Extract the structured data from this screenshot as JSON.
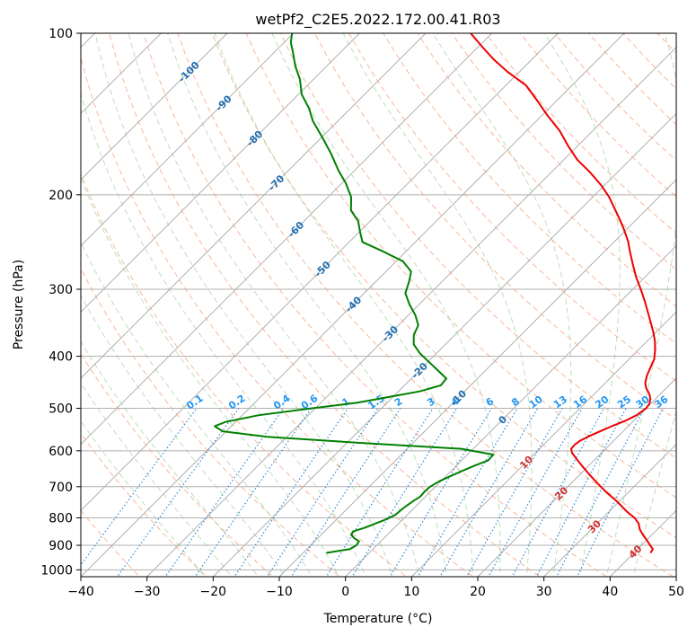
{
  "chart_data": {
    "type": "skew-t log-p",
    "title": "wetPf2_C2E5.2022.172.00.41.R03",
    "xlabel": "Temperature (°C)",
    "ylabel": "Pressure (hPa)",
    "xlim": [
      -40,
      50
    ],
    "ylim": [
      1030,
      100
    ],
    "log_y": true,
    "grid": true,
    "x_ticks": [
      -40,
      -30,
      -20,
      -10,
      0,
      10,
      20,
      30,
      40,
      50
    ],
    "x_tick_labels": [
      "−40",
      "−30",
      "−20",
      "−10",
      "0",
      "10",
      "20",
      "30",
      "40",
      "50"
    ],
    "y_ticks": [
      1000,
      900,
      800,
      700,
      600,
      500,
      400,
      300,
      200,
      100
    ],
    "y_tick_labels": [
      "1000",
      "900",
      "800",
      "700",
      "600",
      "500",
      "400",
      "300",
      "200",
      "100"
    ],
    "isotherm_labels": [
      {
        "text": "-100",
        "value": -100,
        "p": 118
      },
      {
        "text": "-90",
        "value": -90,
        "p": 135
      },
      {
        "text": "-80",
        "value": -80,
        "p": 157
      },
      {
        "text": "-70",
        "value": -70,
        "p": 190
      },
      {
        "text": "-60",
        "value": -60,
        "p": 232
      },
      {
        "text": "-50",
        "value": -50,
        "p": 275
      },
      {
        "text": "-40",
        "value": -40,
        "p": 320
      },
      {
        "text": "-30",
        "value": -30,
        "p": 363
      },
      {
        "text": "-20",
        "value": -20,
        "p": 425
      },
      {
        "text": "-10",
        "value": -10,
        "p": 478
      },
      {
        "text": "0",
        "value": 0,
        "p": 525
      },
      {
        "text": "10",
        "value": 10,
        "p": 630
      },
      {
        "text": "20",
        "value": 20,
        "p": 720
      },
      {
        "text": "30",
        "value": 30,
        "p": 830
      },
      {
        "text": "40",
        "value": 40,
        "p": 925
      }
    ],
    "mixing_ratio_labels": [
      "0.1",
      "0.2",
      "0.4",
      "0.6",
      "1",
      "1.5",
      "2",
      "3",
      "4",
      "6",
      "8",
      "10",
      "13",
      "16",
      "20",
      "25",
      "30",
      "36"
    ],
    "series": [
      {
        "name": "temperature",
        "color": "#ee0000",
        "points": [
          [
            42.5,
            930
          ],
          [
            42.3,
            915
          ],
          [
            41.3,
            900
          ],
          [
            40.0,
            880
          ],
          [
            38.6,
            860
          ],
          [
            37.3,
            840
          ],
          [
            36.3,
            820
          ],
          [
            34.8,
            800
          ],
          [
            32.8,
            780
          ],
          [
            31.0,
            760
          ],
          [
            29.1,
            740
          ],
          [
            27.0,
            720
          ],
          [
            25.0,
            700
          ],
          [
            23.0,
            680
          ],
          [
            21.0,
            660
          ],
          [
            19.0,
            640
          ],
          [
            17.0,
            620
          ],
          [
            15.5,
            605
          ],
          [
            14.8,
            595
          ],
          [
            14.7,
            585
          ],
          [
            14.9,
            575
          ],
          [
            15.5,
            565
          ],
          [
            16.5,
            552
          ],
          [
            17.5,
            540
          ],
          [
            18.7,
            528
          ],
          [
            19.6,
            515
          ],
          [
            20.0,
            500
          ],
          [
            19.8,
            490
          ],
          [
            19.2,
            480
          ],
          [
            18.3,
            470
          ],
          [
            16.9,
            458
          ],
          [
            16.0,
            448
          ],
          [
            15.2,
            435
          ],
          [
            14.5,
            420
          ],
          [
            13.8,
            405
          ],
          [
            12.6,
            390
          ],
          [
            11.2,
            375
          ],
          [
            9.5,
            360
          ],
          [
            7.6,
            345
          ],
          [
            5.6,
            330
          ],
          [
            3.5,
            315
          ],
          [
            1.2,
            300
          ],
          [
            -1.3,
            285
          ],
          [
            -3.7,
            270
          ],
          [
            -6.0,
            256
          ],
          [
            -8.0,
            244
          ],
          [
            -10.4,
            232
          ],
          [
            -12.6,
            222
          ],
          [
            -15.0,
            212
          ],
          [
            -17.5,
            202
          ],
          [
            -20.5,
            192
          ],
          [
            -24.0,
            182
          ],
          [
            -28.0,
            172
          ],
          [
            -31.5,
            162
          ],
          [
            -35.0,
            152
          ],
          [
            -39.3,
            142
          ],
          [
            -43.2,
            133
          ],
          [
            -47.0,
            125
          ],
          [
            -51.8,
            118
          ],
          [
            -55.7,
            112
          ],
          [
            -59.4,
            106
          ],
          [
            -63.2,
            100
          ]
        ]
      },
      {
        "name": "dewpoint",
        "color": "#008000",
        "points": [
          [
            -6.5,
            930
          ],
          [
            -3.5,
            915
          ],
          [
            -3.1,
            900
          ],
          [
            -3.3,
            885
          ],
          [
            -4.5,
            873
          ],
          [
            -5.5,
            860
          ],
          [
            -5.7,
            848
          ],
          [
            -4.5,
            835
          ],
          [
            -3.5,
            820
          ],
          [
            -2.5,
            805
          ],
          [
            -1.8,
            790
          ],
          [
            -1.7,
            775
          ],
          [
            -1.5,
            760
          ],
          [
            -1.2,
            745
          ],
          [
            -0.8,
            730
          ],
          [
            -0.9,
            715
          ],
          [
            -0.8,
            700
          ],
          [
            -0.3,
            685
          ],
          [
            0.6,
            670
          ],
          [
            1.6,
            655
          ],
          [
            2.7,
            640
          ],
          [
            4.0,
            625
          ],
          [
            3.9,
            610
          ],
          [
            -1.8,
            595
          ],
          [
            -18.0,
            580
          ],
          [
            -33.0,
            565
          ],
          [
            -40.5,
            552
          ],
          [
            -42.5,
            540
          ],
          [
            -41.5,
            530
          ],
          [
            -37.5,
            515
          ],
          [
            -30.5,
            500
          ],
          [
            -24.5,
            488
          ],
          [
            -20.5,
            476
          ],
          [
            -16.8,
            465
          ],
          [
            -14.5,
            453
          ],
          [
            -14.7,
            440
          ],
          [
            -17.2,
            425
          ],
          [
            -19.8,
            410
          ],
          [
            -22.5,
            395
          ],
          [
            -24.8,
            380
          ],
          [
            -26.2,
            365
          ],
          [
            -27.0,
            350
          ],
          [
            -29.0,
            335
          ],
          [
            -31.5,
            320
          ],
          [
            -33.8,
            305
          ],
          [
            -35.0,
            290
          ],
          [
            -36.2,
            278
          ],
          [
            -39.0,
            266
          ],
          [
            -43.5,
            255
          ],
          [
            -48.0,
            245
          ],
          [
            -50.0,
            234
          ],
          [
            -51.8,
            224
          ],
          [
            -54.5,
            214
          ],
          [
            -56.5,
            202
          ],
          [
            -59.5,
            190
          ],
          [
            -62.5,
            180
          ],
          [
            -66.0,
            168
          ],
          [
            -70.0,
            156
          ],
          [
            -73.7,
            146
          ],
          [
            -76.3,
            138
          ],
          [
            -79.5,
            130
          ],
          [
            -82.0,
            122
          ],
          [
            -84.8,
            115
          ],
          [
            -87.0,
            109
          ],
          [
            -89.0,
            104
          ],
          [
            -90.2,
            100
          ]
        ]
      }
    ]
  }
}
